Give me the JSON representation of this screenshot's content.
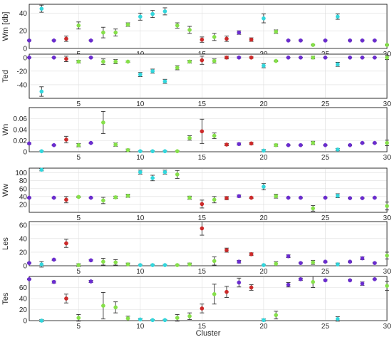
{
  "colors": {
    "cyan": "#33d6dc",
    "purple": "#6a2ccf",
    "green": "#86e04a",
    "red": "#cc2a2a"
  },
  "chart_data": {
    "type": "scatter",
    "xlabel": "Cluster",
    "xlim": [
      1,
      30
    ],
    "xticks": [
      5,
      10,
      15,
      20,
      25,
      30
    ],
    "grid": true,
    "cluster_colors": [
      "purple",
      "cyan",
      "purple",
      "red",
      "green",
      "purple",
      "green",
      "green",
      "green",
      "cyan",
      "cyan",
      "cyan",
      "green",
      "green",
      "red",
      "green",
      "red",
      "purple",
      "red",
      "cyan",
      "green",
      "purple",
      "purple",
      "green",
      "purple",
      "cyan",
      "purple",
      "purple",
      "purple",
      "green"
    ],
    "panels": [
      {
        "ylabel": "Wm [db]",
        "ylim": [
          0,
          50
        ],
        "yticks": [
          0,
          20,
          40
        ],
        "values": [
          9,
          45,
          9,
          11,
          26,
          9,
          18,
          18,
          27,
          36,
          39,
          42,
          26,
          21,
          10,
          13,
          11,
          18,
          10,
          34,
          19,
          9,
          9,
          4,
          9,
          36,
          9,
          9,
          9,
          4
        ],
        "errors": [
          0.6,
          4,
          0.6,
          3,
          4,
          0.6,
          6,
          4,
          2,
          4,
          4,
          4,
          3,
          4,
          3,
          4,
          3,
          2,
          2,
          5,
          2,
          0.6,
          0.6,
          0.6,
          0.6,
          3,
          0.6,
          0.6,
          0.6,
          0.6
        ]
      },
      {
        "ylabel": "Ted",
        "ylim": [
          -60,
          5
        ],
        "yticks": [
          -40,
          -20,
          0
        ],
        "values": [
          0,
          -50,
          0,
          -2,
          -6,
          0,
          -6,
          -6,
          -6,
          -25,
          -20,
          -35,
          -15,
          -6,
          -4,
          -5,
          0,
          0,
          0,
          -12,
          -5,
          0,
          0,
          0,
          0,
          -10,
          0,
          0,
          0,
          0
        ],
        "errors": [
          0.3,
          7,
          0.3,
          4,
          2,
          0.3,
          4,
          3,
          1,
          3,
          3,
          3,
          3,
          2,
          6,
          3,
          2,
          1,
          1,
          3,
          1,
          0.3,
          0.3,
          2,
          0.3,
          3,
          0.3,
          0.3,
          0.3,
          3
        ]
      },
      {
        "ylabel": "Wn",
        "ylim": [
          0,
          0.08
        ],
        "yticks": [
          0,
          0.02,
          0.04,
          0.06
        ],
        "values": [
          0.015,
          0.001,
          0.012,
          0.022,
          0.012,
          0.016,
          0.053,
          0.013,
          0.003,
          0.001,
          0.001,
          0.001,
          0.001,
          0.025,
          0.037,
          0.029,
          0.013,
          0.014,
          0.015,
          0.002,
          0.012,
          0.012,
          0.012,
          0.016,
          0.012,
          0.004,
          0.012,
          0.016,
          0.016,
          0.016
        ],
        "errors": [
          0.001,
          0.001,
          0.001,
          0.006,
          0.003,
          0.001,
          0.02,
          0.003,
          0.002,
          0.001,
          0.001,
          0.001,
          0.001,
          0.004,
          0.022,
          0.005,
          0.002,
          0.002,
          0.002,
          0.002,
          0.002,
          0.001,
          0.001,
          0.003,
          0.001,
          0.002,
          0.001,
          0.001,
          0.001,
          0.005
        ]
      },
      {
        "ylabel": "Ww",
        "ylim": [
          0,
          112
        ],
        "yticks": [
          20,
          40,
          60,
          80,
          100
        ],
        "values": [
          37,
          108,
          37,
          32,
          39,
          37,
          30,
          38,
          42,
          102,
          87,
          102,
          96,
          37,
          21,
          32,
          36,
          41,
          37,
          65,
          41,
          37,
          37,
          10,
          37,
          42,
          36,
          36,
          37,
          16
        ],
        "errors": [
          1,
          3,
          1,
          8,
          2,
          1,
          8,
          3,
          4,
          5,
          7,
          5,
          10,
          4,
          10,
          8,
          4,
          3,
          2,
          8,
          5,
          1,
          1,
          7,
          1,
          5,
          1,
          1,
          1,
          10
        ]
      },
      {
        "ylabel": "Les",
        "ylim": [
          0,
          65
        ],
        "yticks": [
          0,
          20,
          40,
          60
        ],
        "values": [
          4,
          2,
          9,
          33,
          1,
          8,
          6,
          5,
          2,
          1,
          1,
          1,
          1,
          2,
          55,
          7,
          23,
          6,
          17,
          1,
          3,
          14,
          4,
          5,
          6,
          2,
          6,
          11,
          4,
          15
        ],
        "errors": [
          1,
          4,
          1,
          6,
          2,
          1,
          5,
          4,
          2,
          1,
          1,
          1,
          1,
          2,
          10,
          6,
          3,
          2,
          2,
          1,
          3,
          2,
          1,
          3,
          1,
          2,
          1,
          2,
          1,
          5
        ]
      },
      {
        "ylabel": "Tes",
        "ylim": [
          0,
          80
        ],
        "yticks": [
          0,
          20,
          40,
          60
        ],
        "values": [
          75,
          0,
          70,
          40,
          5,
          71,
          27,
          24,
          4,
          2,
          1,
          1,
          5,
          8,
          22,
          48,
          52,
          69,
          60,
          1,
          10,
          65,
          75,
          70,
          73,
          3,
          73,
          67,
          75,
          63
        ],
        "errors": [
          1,
          2,
          2,
          8,
          6,
          2,
          24,
          10,
          4,
          2,
          1,
          1,
          6,
          6,
          8,
          18,
          10,
          8,
          5,
          2,
          7,
          4,
          2,
          10,
          1,
          4,
          1,
          3,
          1,
          8
        ]
      }
    ]
  }
}
